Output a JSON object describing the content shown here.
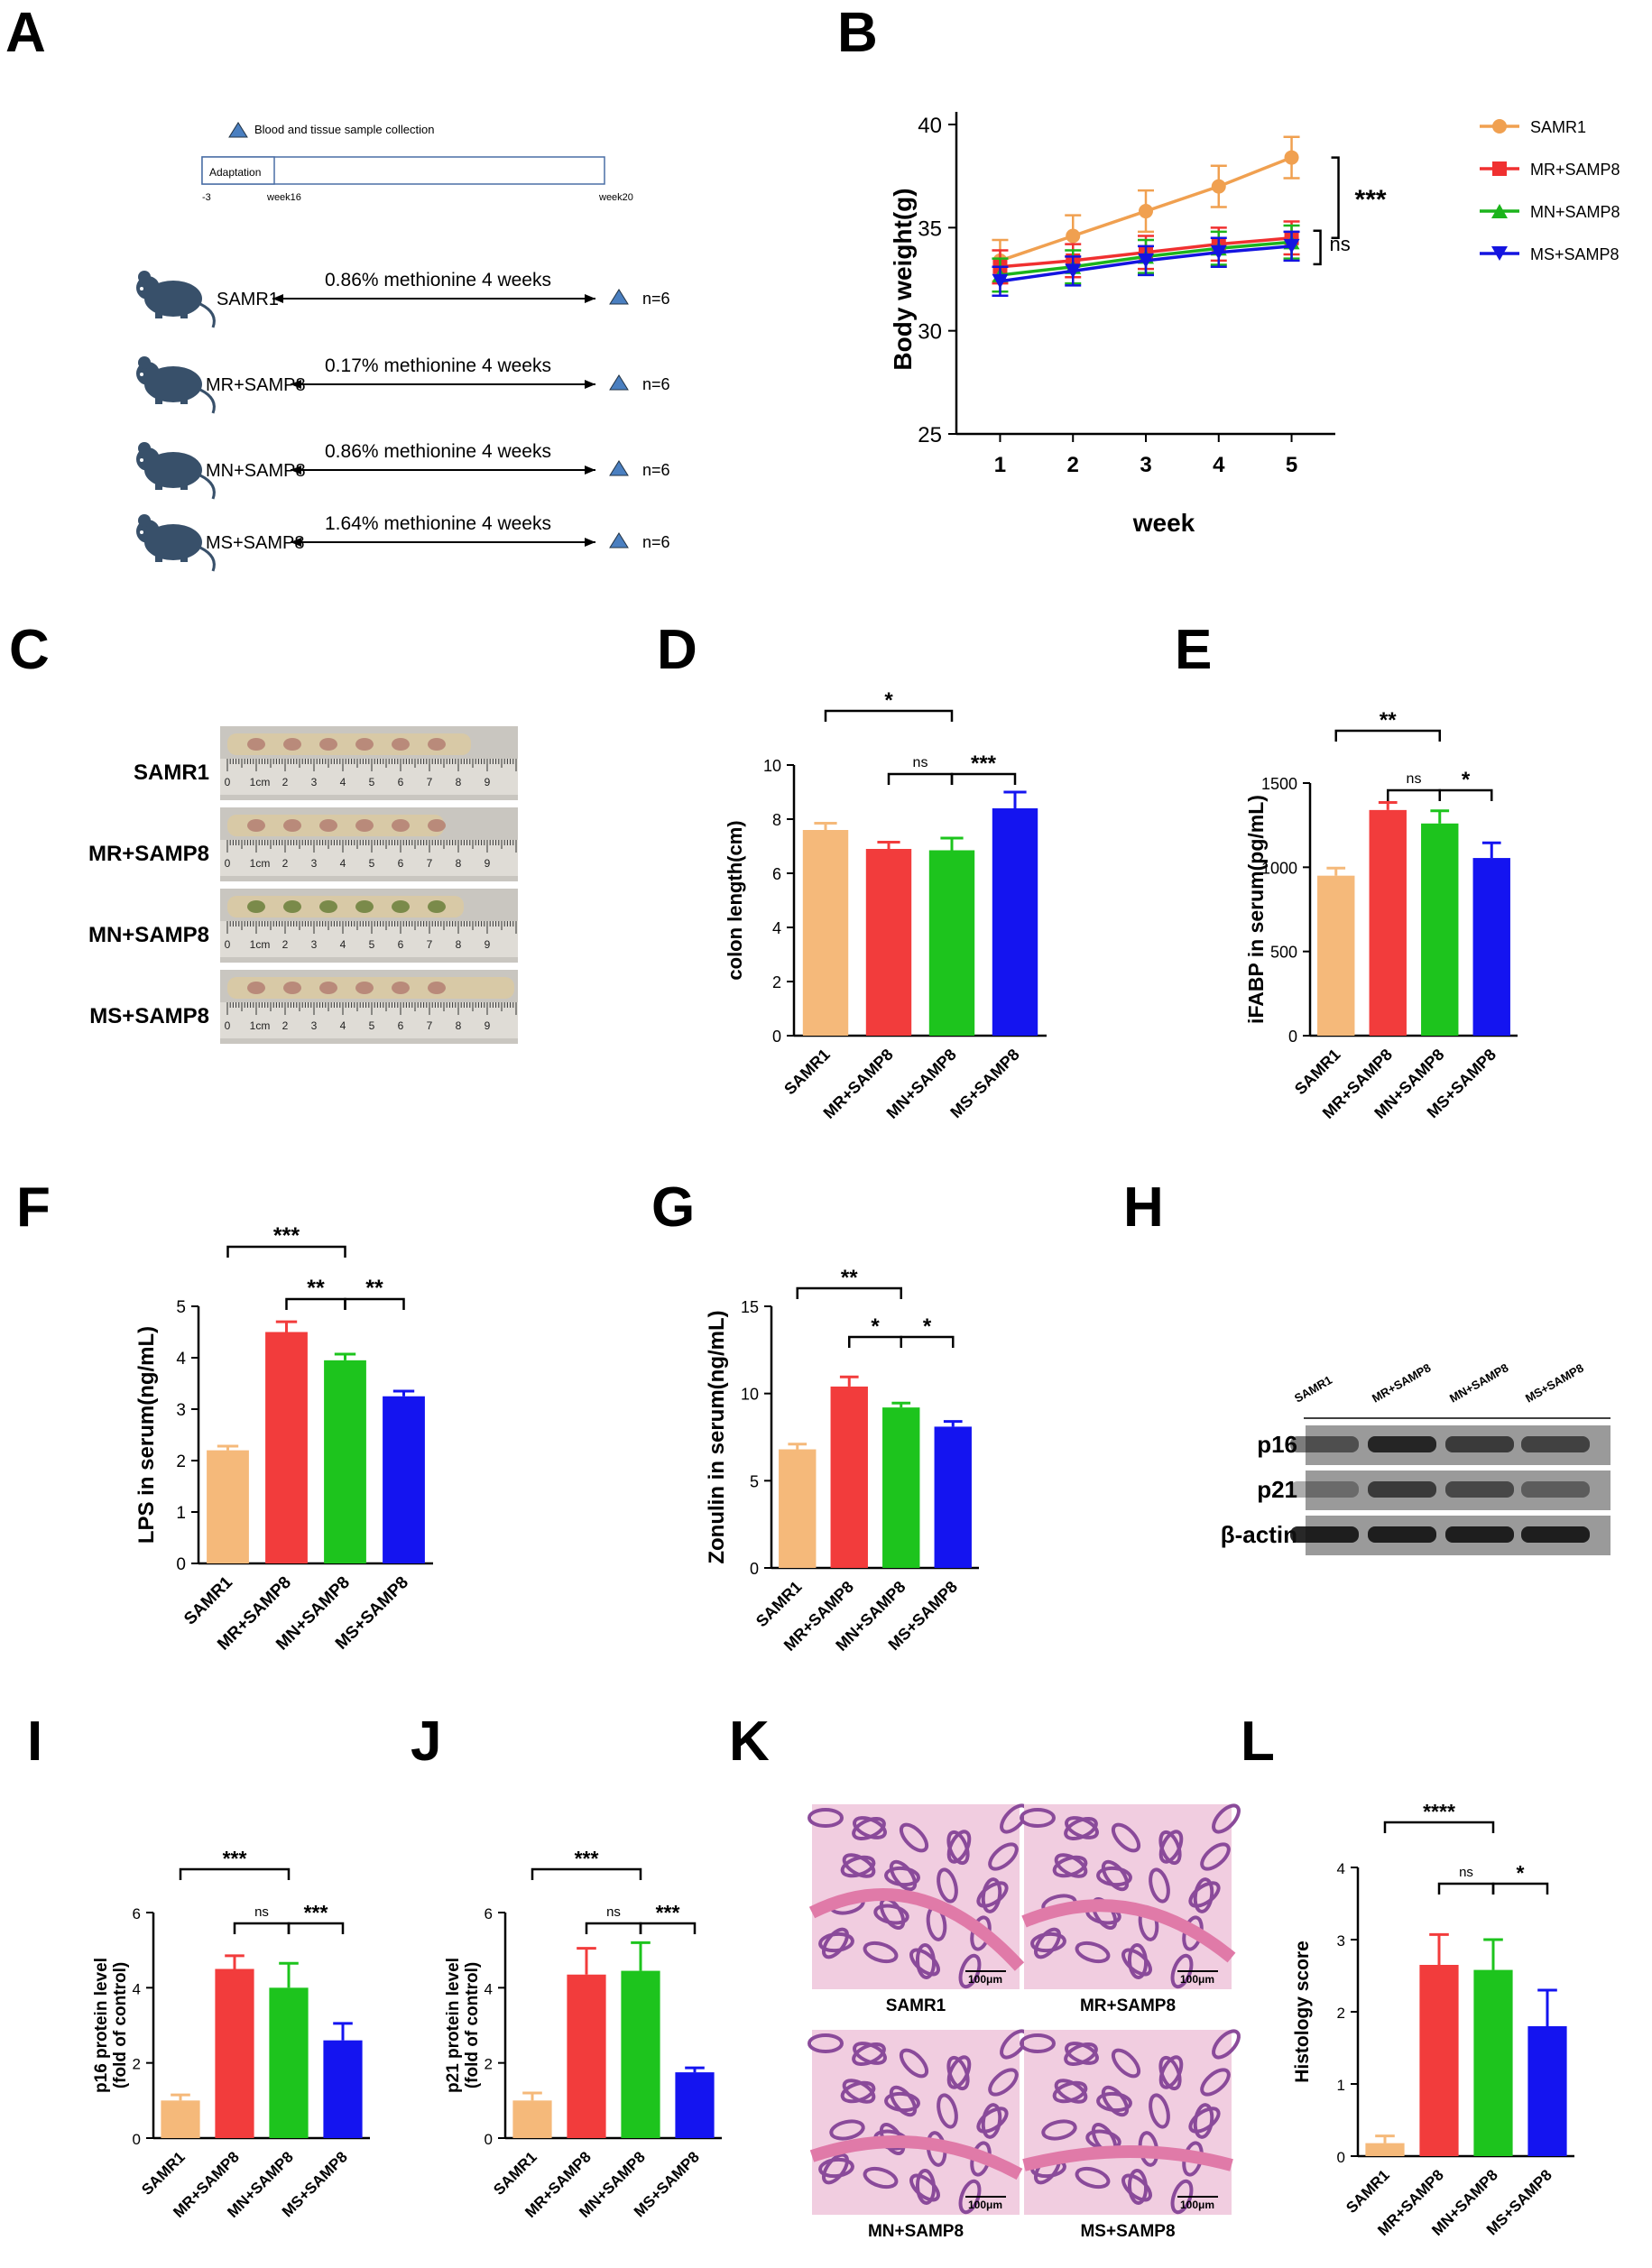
{
  "panel_letters": {
    "A": "A",
    "B": "B",
    "C": "C",
    "D": "D",
    "E": "E",
    "F": "F",
    "G": "G",
    "H": "H",
    "I": "I",
    "J": "J",
    "K": "K",
    "L": "L"
  },
  "panelA": {
    "legend": "Blood and tissue sample collection",
    "adaptation": "Adaptation",
    "t_start": "-3",
    "t_week16": "week16",
    "t_week20": "week20",
    "rows": [
      {
        "group": "SAMR1",
        "diet": "0.86%  methionine 4 weeks",
        "n": "n=6"
      },
      {
        "group": "MR+SAMP8",
        "diet": "0.17%  methionine 4 weeks",
        "n": "n=6"
      },
      {
        "group": "MN+SAMP8",
        "diet": "0.86%  methionine 4 weeks",
        "n": "n=6"
      },
      {
        "group": "MS+SAMP8",
        "diet": "1.64%  methionine 4 weeks",
        "n": "n=6"
      }
    ]
  },
  "panelC": {
    "rows": [
      "SAMR1",
      "MR+SAMP8",
      "MN+SAMP8",
      "MS+SAMP8"
    ],
    "ruler_ticks": [
      "0",
      "1cm",
      "2",
      "3",
      "4",
      "5",
      "6",
      "7",
      "8",
      "9"
    ]
  },
  "panelH": {
    "lanes": [
      "SAMR1",
      "MR+SAMP8",
      "MN+SAMP8",
      "MS+SAMP8"
    ],
    "bands": [
      "p16",
      "p21",
      "β-actin"
    ]
  },
  "panelK": {
    "captions": [
      "SAMR1",
      "MR+SAMP8",
      "MN+SAMP8",
      "MS+SAMP8"
    ],
    "scale": "100μm"
  },
  "colors": {
    "SAMR1": "#F5B97A",
    "MR": "#F23C3C",
    "MN": "#1DC41D",
    "MS": "#1414F0"
  },
  "chart_data": [
    {
      "id": "B",
      "type": "line",
      "x": [
        1,
        2,
        3,
        4,
        5
      ],
      "xlabel": "week",
      "ylabel": "Body weight(g)",
      "ylim": [
        25,
        40
      ],
      "yticks": [
        25,
        30,
        35,
        40
      ],
      "series": [
        {
          "name": "SAMR1",
          "values": [
            33.4,
            34.6,
            35.8,
            37.0,
            38.4
          ],
          "err": [
            1.0,
            1.0,
            1.0,
            1.0,
            1.0
          ],
          "color": "#F0A050",
          "marker": "circle"
        },
        {
          "name": "MR+SAMP8",
          "values": [
            33.1,
            33.4,
            33.8,
            34.2,
            34.5
          ],
          "err": [
            0.8,
            0.8,
            0.8,
            0.8,
            0.8
          ],
          "color": "#F03030",
          "marker": "square"
        },
        {
          "name": "MN+SAMP8",
          "values": [
            32.7,
            33.1,
            33.6,
            34.0,
            34.3
          ],
          "err": [
            0.8,
            0.8,
            0.8,
            0.8,
            0.8
          ],
          "color": "#1CB41C",
          "marker": "triangle-up"
        },
        {
          "name": "MS+SAMP8",
          "values": [
            32.4,
            32.9,
            33.4,
            33.8,
            34.1
          ],
          "err": [
            0.7,
            0.7,
            0.7,
            0.7,
            0.7
          ],
          "color": "#1414E0",
          "marker": "triangle-down"
        }
      ],
      "annotations": [
        "***",
        "ns"
      ],
      "legend": "right"
    },
    {
      "id": "D",
      "type": "bar",
      "categories": [
        "SAMR1",
        "MR+SAMP8",
        "MN+SAMP8",
        "MS+SAMP8"
      ],
      "values": [
        7.6,
        6.9,
        6.85,
        8.4
      ],
      "err": [
        0.25,
        0.25,
        0.45,
        0.6
      ],
      "ylabel": "colon length(cm)",
      "ylim": [
        0,
        10
      ],
      "yticks": [
        0,
        2,
        4,
        6,
        8,
        10
      ],
      "brackets": [
        {
          "from": 0,
          "to": 2,
          "label": "*"
        },
        {
          "from": 1,
          "to": 2,
          "label": "ns"
        },
        {
          "from": 2,
          "to": 3,
          "label": "***"
        }
      ]
    },
    {
      "id": "E",
      "type": "bar",
      "categories": [
        "SAMR1",
        "MR+SAMP8",
        "MN+SAMP8",
        "MS+SAMP8"
      ],
      "values": [
        950,
        1340,
        1260,
        1055
      ],
      "err": [
        45,
        45,
        75,
        90
      ],
      "ylabel": "iFABP in serum(pg/mL)",
      "ylim": [
        0,
        1500
      ],
      "yticks": [
        0,
        500,
        1000,
        1500
      ],
      "brackets": [
        {
          "from": 0,
          "to": 2,
          "label": "**"
        },
        {
          "from": 1,
          "to": 2,
          "label": "ns"
        },
        {
          "from": 2,
          "to": 3,
          "label": "*"
        }
      ]
    },
    {
      "id": "F",
      "type": "bar",
      "categories": [
        "SAMR1",
        "MR+SAMP8",
        "MN+SAMP8",
        "MS+SAMP8"
      ],
      "values": [
        2.2,
        4.5,
        3.95,
        3.25
      ],
      "err": [
        0.08,
        0.2,
        0.12,
        0.1
      ],
      "ylabel": "LPS in serum(ng/mL)",
      "ylim": [
        0,
        5
      ],
      "yticks": [
        0,
        1,
        2,
        3,
        4,
        5
      ],
      "brackets": [
        {
          "from": 0,
          "to": 2,
          "label": "***"
        },
        {
          "from": 1,
          "to": 2,
          "label": "**"
        },
        {
          "from": 2,
          "to": 3,
          "label": "**"
        }
      ]
    },
    {
      "id": "G",
      "type": "bar",
      "categories": [
        "SAMR1",
        "MR+SAMP8",
        "MN+SAMP8",
        "MS+SAMP8"
      ],
      "values": [
        6.8,
        10.4,
        9.2,
        8.1
      ],
      "err": [
        0.3,
        0.55,
        0.25,
        0.3
      ],
      "ylabel": "Zonulin in serum(ng/mL)",
      "ylim": [
        0,
        15
      ],
      "yticks": [
        0,
        5,
        10,
        15
      ],
      "brackets": [
        {
          "from": 0,
          "to": 2,
          "label": "**"
        },
        {
          "from": 1,
          "to": 2,
          "label": "*"
        },
        {
          "from": 2,
          "to": 3,
          "label": "*"
        }
      ]
    },
    {
      "id": "I",
      "type": "bar",
      "categories": [
        "SAMR1",
        "MR+SAMP8",
        "MN+SAMP8",
        "MS+SAMP8"
      ],
      "values": [
        1.0,
        4.5,
        4.0,
        2.6
      ],
      "err": [
        0.15,
        0.35,
        0.65,
        0.45
      ],
      "ylabel": "p16 protein level",
      "ylabel2": "(fold of control)",
      "ylim": [
        0,
        6
      ],
      "yticks": [
        0,
        2,
        4,
        6
      ],
      "brackets": [
        {
          "from": 0,
          "to": 2,
          "label": "***"
        },
        {
          "from": 1,
          "to": 2,
          "label": "ns"
        },
        {
          "from": 2,
          "to": 3,
          "label": "***"
        }
      ]
    },
    {
      "id": "J",
      "type": "bar",
      "categories": [
        "SAMR1",
        "MR+SAMP8",
        "MN+SAMP8",
        "MS+SAMP8"
      ],
      "values": [
        1.0,
        4.35,
        4.45,
        1.75
      ],
      "err": [
        0.2,
        0.7,
        0.75,
        0.12
      ],
      "ylabel": "p21 protein level",
      "ylabel2": "(fold of control)",
      "ylim": [
        0,
        6
      ],
      "yticks": [
        0,
        2,
        4,
        6
      ],
      "brackets": [
        {
          "from": 0,
          "to": 2,
          "label": "***"
        },
        {
          "from": 1,
          "to": 2,
          "label": "ns"
        },
        {
          "from": 2,
          "to": 3,
          "label": "***"
        }
      ]
    },
    {
      "id": "L",
      "type": "bar",
      "categories": [
        "SAMR1",
        "MR+SAMP8",
        "MN+SAMP8",
        "MS+SAMP8"
      ],
      "values": [
        0.18,
        2.65,
        2.58,
        1.8
      ],
      "err": [
        0.1,
        0.42,
        0.42,
        0.5
      ],
      "ylabel": "Histology score",
      "ylim": [
        0,
        4
      ],
      "yticks": [
        0,
        1,
        2,
        3,
        4
      ],
      "brackets": [
        {
          "from": 0,
          "to": 2,
          "label": "****"
        },
        {
          "from": 1,
          "to": 2,
          "label": "ns"
        },
        {
          "from": 2,
          "to": 3,
          "label": "*"
        }
      ]
    }
  ]
}
